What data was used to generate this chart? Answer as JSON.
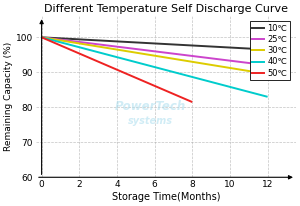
{
  "title": "Different Temperature Self Discharge Curve",
  "xlabel": "Storage Time(Months)",
  "ylabel": "Remaining Capacity (%)",
  "xlim": [
    -0.3,
    13.5
  ],
  "ylim": [
    60,
    106
  ],
  "xticks": [
    0,
    2,
    4,
    6,
    8,
    10,
    12
  ],
  "yticks": [
    60,
    70,
    80,
    90,
    100
  ],
  "series": [
    {
      "label": "10℃",
      "color": "#333333",
      "x": [
        0,
        12
      ],
      "y": [
        100,
        96.5
      ]
    },
    {
      "label": "25℃",
      "color": "#cc44cc",
      "x": [
        0,
        12
      ],
      "y": [
        100,
        92.0
      ]
    },
    {
      "label": "30℃",
      "color": "#ddcc00",
      "x": [
        0,
        12
      ],
      "y": [
        100,
        89.5
      ]
    },
    {
      "label": "40℃",
      "color": "#00cccc",
      "x": [
        0,
        12
      ],
      "y": [
        100,
        83.0
      ]
    },
    {
      "label": "50℃",
      "color": "#ee2222",
      "x": [
        0,
        8
      ],
      "y": [
        100,
        81.5
      ]
    }
  ],
  "background_color": "#ffffff",
  "grid_color": "#aaaaaa",
  "watermark_line1": "PowerTech",
  "watermark_line2": "systems"
}
